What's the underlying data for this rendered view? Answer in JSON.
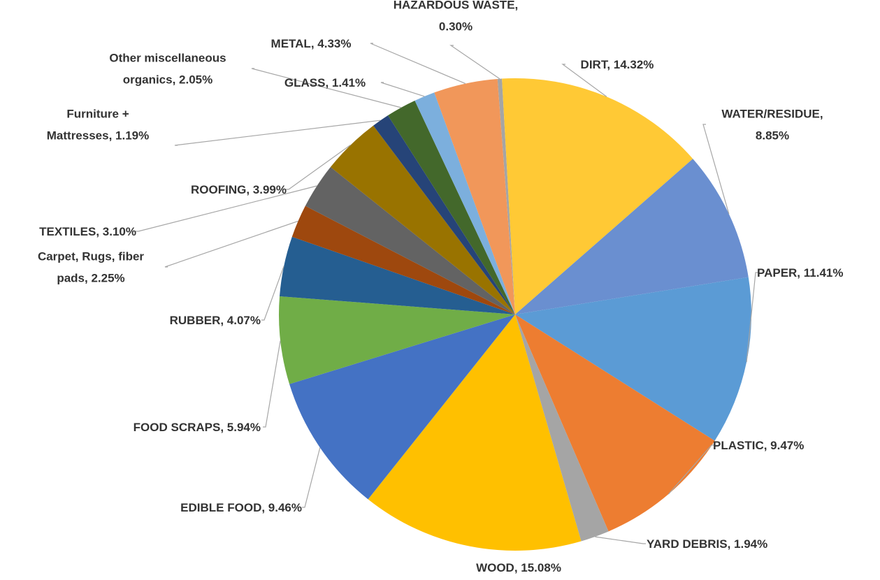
{
  "chart_data": {
    "type": "pie",
    "title": "",
    "legend": "none",
    "slices": [
      {
        "label": "HAZARDOUS WASTE, 0.30%",
        "value": 0.3,
        "color": "#a5a5a5"
      },
      {
        "label": "DIRT, 14.32%",
        "value": 14.32,
        "color": "#ffc935"
      },
      {
        "label": "WATER/RESIDUE, 8.85%",
        "value": 8.85,
        "color": "#6a8fd0"
      },
      {
        "label": "PAPER, 11.41%",
        "value": 11.41,
        "color": "#5b9bd5"
      },
      {
        "label": "PLASTIC, 9.47%",
        "value": 9.47,
        "color": "#ed7d31"
      },
      {
        "label": "YARD DEBRIS, 1.94%",
        "value": 1.94,
        "color": "#a5a5a5"
      },
      {
        "label": "WOOD, 15.08%",
        "value": 15.08,
        "color": "#ffc000"
      },
      {
        "label": "EDIBLE FOOD, 9.46%",
        "value": 9.46,
        "color": "#4472c4"
      },
      {
        "label": "FOOD SCRAPS, 5.94%",
        "value": 5.94,
        "color": "#70ad47"
      },
      {
        "label": "RUBBER, 4.07%",
        "value": 4.07,
        "color": "#255e91"
      },
      {
        "label": "Carpet, Rugs, fiber pads, 2.25%",
        "value": 2.25,
        "color": "#9e480e"
      },
      {
        "label": "TEXTILES, 3.10%",
        "value": 3.1,
        "color": "#636363"
      },
      {
        "label": "ROOFING, 3.99%",
        "value": 3.99,
        "color": "#997300"
      },
      {
        "label": "Furniture + Mattresses, 1.19%",
        "value": 1.19,
        "color": "#264478"
      },
      {
        "label": "Other miscellaneous organics, 2.05%",
        "value": 2.05,
        "color": "#43682b"
      },
      {
        "label": "GLASS, 1.41%",
        "value": 1.41,
        "color": "#7cafdd"
      },
      {
        "label": "METAL, 4.33%",
        "value": 4.33,
        "color": "#f1975a"
      }
    ]
  }
}
